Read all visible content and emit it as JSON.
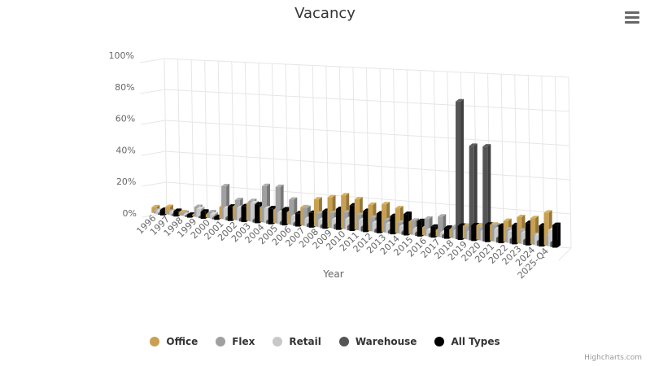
{
  "header": {
    "title": "Vacancy"
  },
  "menu": {
    "icon": "hamburger-menu-icon"
  },
  "credits": {
    "label": "Highcharts.com"
  },
  "chart_data": {
    "type": "bar",
    "subtype": "3d-column",
    "title": "Vacancy",
    "xlabel": "Year",
    "ylabel": "",
    "ylim": [
      0,
      100
    ],
    "yticks": [
      "0%",
      "20%",
      "40%",
      "60%",
      "80%",
      "100%"
    ],
    "grid": true,
    "legend_position": "bottom",
    "categories": [
      "1996",
      "1997",
      "1998",
      "1999",
      "2000",
      "2001",
      "2002",
      "2003",
      "2004",
      "2005",
      "2006",
      "2007",
      "2008",
      "2009",
      "2010",
      "2011",
      "2012",
      "2013",
      "2014",
      "2015",
      "2016",
      "2017",
      "2018",
      "2019",
      "2020",
      "2021",
      "2022",
      "2023",
      "2024",
      "2025-Q4"
    ],
    "series": [
      {
        "name": "Office",
        "color": "#c8a050",
        "values": [
          4,
          5,
          2,
          1,
          2,
          8,
          9,
          12,
          10,
          9,
          8,
          12,
          18,
          20,
          22,
          20,
          17,
          18,
          16,
          8,
          5,
          4,
          5,
          8,
          9,
          10,
          13,
          16,
          16,
          20
        ]
      },
      {
        "name": "Flex",
        "color": "#a0a0a0",
        "values": [
          2,
          2,
          2,
          7,
          4,
          23,
          14,
          14,
          25,
          25,
          17,
          12,
          9,
          10,
          11,
          10,
          9,
          8,
          7,
          9,
          11,
          13,
          7,
          8,
          8,
          10,
          8,
          8,
          6,
          6
        ]
      },
      {
        "name": "Retail",
        "color": "#c8c8c8",
        "values": [
          2,
          2,
          1,
          6,
          3,
          8,
          9,
          13,
          10,
          8,
          6,
          5,
          5,
          6,
          7,
          7,
          6,
          6,
          5,
          4,
          4,
          3,
          5,
          5,
          6,
          8,
          7,
          7,
          6,
          10
        ]
      },
      {
        "name": "Warehouse",
        "color": "#555555",
        "values": [
          1,
          1,
          1,
          1,
          1,
          2,
          2,
          2,
          2,
          2,
          2,
          2,
          2,
          3,
          3,
          3,
          2,
          2,
          2,
          2,
          2,
          2,
          88,
          60,
          60,
          3,
          3,
          3,
          3,
          3
        ]
      },
      {
        "name": "All Types",
        "color": "#000000",
        "values": [
          4,
          4,
          2,
          5,
          2,
          10,
          11,
          13,
          11,
          11,
          9,
          10,
          12,
          14,
          17,
          14,
          13,
          12,
          14,
          10,
          7,
          7,
          9,
          10,
          11,
          11,
          12,
          14,
          13,
          14
        ]
      }
    ]
  },
  "legend": {
    "items": [
      {
        "label": "Office",
        "color": "#c8a050"
      },
      {
        "label": "Flex",
        "color": "#a0a0a0"
      },
      {
        "label": "Retail",
        "color": "#c8c8c8"
      },
      {
        "label": "Warehouse",
        "color": "#555555"
      },
      {
        "label": "All Types",
        "color": "#000000"
      }
    ]
  }
}
